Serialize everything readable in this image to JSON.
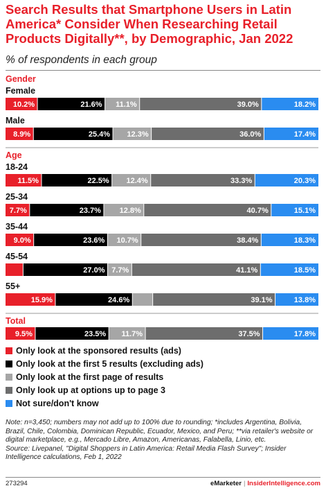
{
  "header": {
    "title": "Search Results that Smartphone Users in Latin America* Consider When Researching Retail Products Digitally**, by Demographic, Jan 2022",
    "subtitle": "% of respondents in each group"
  },
  "colors": {
    "accent": "#e8202a",
    "series": [
      "#e8202a",
      "#000000",
      "#a6a6a6",
      "#6d6d6d",
      "#2a8cf0"
    ]
  },
  "chart_data": {
    "type": "bar",
    "orientation": "horizontal",
    "stacked": true,
    "series": [
      {
        "name": "Only look at the sponsored results (ads)"
      },
      {
        "name": "Only look at the first 5 results (excluding ads)"
      },
      {
        "name": "Only look at the first page of results"
      },
      {
        "name": "Only look up at options up to page 3"
      },
      {
        "name": "Not sure/don't know"
      }
    ],
    "sections": [
      {
        "label": "Gender",
        "groups": [
          {
            "label": "Female",
            "values": [
              10.2,
              21.6,
              11.1,
              39.0,
              18.2
            ],
            "value_labels": [
              "10.2%",
              "21.6%",
              "11.1%",
              "39.0%",
              "18.2%"
            ]
          },
          {
            "label": "Male",
            "values": [
              8.9,
              25.4,
              12.3,
              36.0,
              17.4
            ],
            "value_labels": [
              "8.9%",
              "25.4%",
              "12.3%",
              "36.0%",
              "17.4%"
            ]
          }
        ]
      },
      {
        "label": "Age",
        "groups": [
          {
            "label": "18-24",
            "values": [
              11.5,
              22.5,
              12.4,
              33.3,
              20.3
            ],
            "value_labels": [
              "11.5%",
              "22.5%",
              "12.4%",
              "33.3%",
              "20.3%"
            ]
          },
          {
            "label": "25-34",
            "values": [
              7.7,
              23.7,
              12.8,
              40.7,
              15.1
            ],
            "value_labels": [
              "7.7%",
              "23.7%",
              "12.8%",
              "40.7%",
              "15.1%"
            ]
          },
          {
            "label": "35-44",
            "values": [
              9.0,
              23.6,
              10.7,
              38.4,
              18.3
            ],
            "value_labels": [
              "9.0%",
              "23.6%",
              "10.7%",
              "38.4%",
              "18.3%"
            ]
          },
          {
            "label": "45-54",
            "values": [
              5.6,
              27.0,
              7.7,
              41.1,
              18.5
            ],
            "value_labels": [
              "5.6%",
              "27.0%",
              "7.7%",
              "41.1%",
              "18.5%"
            ]
          },
          {
            "label": "55+",
            "values": [
              15.9,
              24.6,
              6.5,
              39.1,
              13.8
            ],
            "value_labels": [
              "15.9%",
              "24.6%",
              "6.5%",
              "39.1%",
              "13.8%"
            ]
          }
        ]
      },
      {
        "label": "Total",
        "groups": [
          {
            "label": "",
            "values": [
              9.5,
              23.5,
              11.7,
              37.5,
              17.8
            ],
            "value_labels": [
              "9.5%",
              "23.5%",
              "11.7%",
              "37.5%",
              "17.8%"
            ]
          }
        ]
      }
    ],
    "legend": "bottom",
    "grid": false
  },
  "notes": {
    "note": "Note: n=3,450; numbers may not add up to 100% due to rounding; *includes Argentina, Bolivia, Brazil, Chile, Colombia, Dominican Republic, Ecuador, Mexico, and Peru; **via retailer's website or digital marketplace, e.g., Mercado Libre, Amazon, Americanas, Falabella, Linio, etc.",
    "source": "Source: Livepanel, \"Digital Shoppers in Latin America: Retail Media Flash Survey\"; Insider Intelligence calculations, Feb 1, 2022"
  },
  "footer": {
    "id": "273294",
    "brand_a": "eMarketer",
    "separator": "|",
    "brand_b": "InsiderIntelligence.com"
  }
}
